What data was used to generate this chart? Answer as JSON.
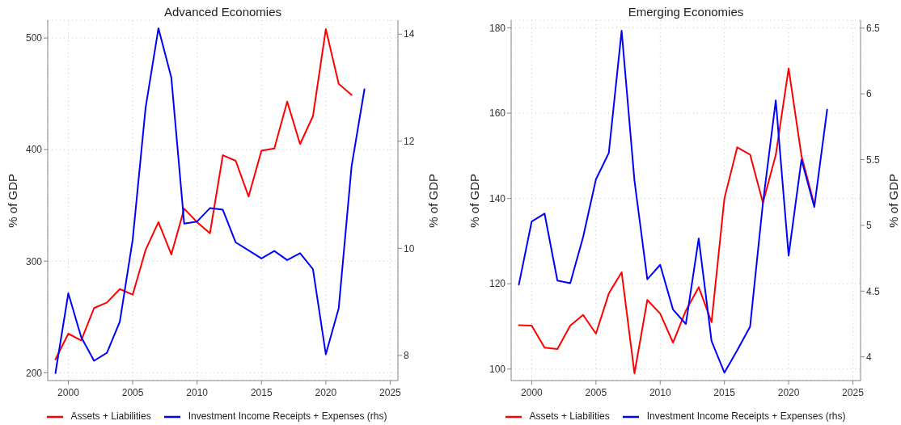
{
  "chart_data": [
    {
      "type": "line",
      "title": "Advanced Economies",
      "ylabel": "% of GDP",
      "y2label": "% of GDP",
      "x": [
        1999,
        2000,
        2001,
        2002,
        2003,
        2004,
        2005,
        2006,
        2007,
        2008,
        2009,
        2010,
        2011,
        2012,
        2013,
        2014,
        2015,
        2016,
        2017,
        2018,
        2019,
        2020,
        2021,
        2022,
        2023
      ],
      "xlim": [
        1998.4,
        2025.6
      ],
      "xticks": [
        2000,
        2005,
        2010,
        2015,
        2020,
        2025
      ],
      "ylim": [
        193,
        516
      ],
      "yticks": [
        200,
        300,
        400,
        500
      ],
      "y2lim": [
        7.53,
        14.26
      ],
      "y2ticks": [
        8,
        10,
        12,
        14
      ],
      "series": [
        {
          "name": "Assets + Liabilities",
          "color": "#ff0000",
          "values": [
            212,
            235,
            229,
            258,
            263,
            275,
            270,
            310,
            335,
            306,
            347,
            335,
            325,
            395,
            390,
            358,
            399,
            401,
            443,
            405,
            430,
            508,
            459,
            449,
            null
          ]
        },
        {
          "name": "Investment Income Receipts + Expenses (rhs)",
          "color": "#0000ff",
          "axis": "y2",
          "values": [
            7.67,
            9.16,
            8.34,
            7.9,
            8.05,
            8.63,
            10.16,
            12.62,
            14.11,
            13.19,
            10.46,
            10.5,
            10.75,
            10.72,
            10.11,
            9.96,
            9.81,
            9.95,
            9.78,
            9.91,
            9.61,
            8.02,
            8.88,
            11.53,
            12.97
          ]
        }
      ],
      "grid": true,
      "legend": "bottom"
    },
    {
      "type": "line",
      "title": "Emerging Economies",
      "ylabel": "% of GDP",
      "y2label": "% of GDP",
      "x": [
        1999,
        2000,
        2001,
        2002,
        2003,
        2004,
        2005,
        2006,
        2007,
        2008,
        2009,
        2010,
        2011,
        2012,
        2013,
        2014,
        2015,
        2016,
        2017,
        2018,
        2019,
        2020,
        2021,
        2022,
        2023
      ],
      "xlim": [
        1998.4,
        2025.6
      ],
      "xticks": [
        2000,
        2005,
        2010,
        2015,
        2020,
        2025
      ],
      "ylim": [
        97.3,
        181.8
      ],
      "yticks": [
        100,
        120,
        140,
        160,
        180
      ],
      "y2lim": [
        3.82,
        6.56
      ],
      "y2ticks": [
        4,
        4.5,
        5,
        5.5,
        6,
        6.5
      ],
      "series": [
        {
          "name": "Assets + Liabilities",
          "color": "#ff0000",
          "values": [
            110.3,
            110.2,
            105.0,
            104.7,
            110.2,
            112.7,
            108.3,
            117.7,
            122.7,
            99.0,
            116.2,
            113.0,
            106.2,
            113.7,
            119.2,
            111.0,
            140.0,
            152.0,
            150.3,
            139.0,
            150.2,
            170.5,
            150.0,
            138.5,
            null
          ]
        },
        {
          "name": "Investment Income Receipts + Expenses (rhs)",
          "color": "#0000ff",
          "axis": "y2",
          "values": [
            4.55,
            5.03,
            5.09,
            4.58,
            4.56,
            4.91,
            5.35,
            5.55,
            6.48,
            5.34,
            4.59,
            4.7,
            4.36,
            4.25,
            4.9,
            4.12,
            3.88,
            4.05,
            4.23,
            5.17,
            5.95,
            4.77,
            5.5,
            5.14,
            5.88
          ]
        }
      ],
      "grid": true,
      "legend": "bottom"
    }
  ]
}
